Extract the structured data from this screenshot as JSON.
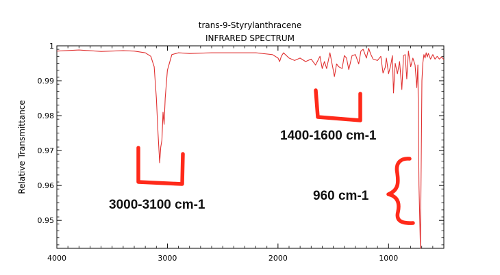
{
  "chart_data": {
    "type": "line",
    "title": "trans-9-Styrylanthracene",
    "subtitle": "INFRARED SPECTRUM",
    "ylabel": "Relative Transmittance",
    "xlabel": "",
    "xlim": [
      4000,
      500
    ],
    "ylim": [
      0.942,
      1.0
    ],
    "x_ticks": [
      4000,
      3000,
      2000,
      1000
    ],
    "y_ticks": [
      1,
      0.99,
      0.98,
      0.97,
      0.96,
      0.95
    ],
    "x_tick_labels": [
      "4000",
      "3000",
      "2000",
      "1000"
    ],
    "y_tick_labels": [
      "1",
      "0.99",
      "0.98",
      "0.97",
      "0.96",
      "0.95"
    ],
    "grid": false,
    "line_color": "#e03030",
    "series": [
      {
        "x": [
          4000,
          3800,
          3600,
          3400,
          3300,
          3200,
          3150,
          3120,
          3100,
          3085,
          3070,
          3060,
          3050,
          3040,
          3030,
          3020,
          3000,
          2960,
          2900,
          2800,
          2600,
          2400,
          2200,
          2050,
          2000,
          1985,
          1970,
          1950,
          1900,
          1850,
          1800,
          1750,
          1700,
          1660,
          1620,
          1600,
          1580,
          1560,
          1530,
          1500,
          1490,
          1470,
          1450,
          1420,
          1400,
          1380,
          1360,
          1330,
          1300,
          1270,
          1250,
          1230,
          1200,
          1180,
          1160,
          1140,
          1100,
          1070,
          1050,
          1030,
          1020,
          1000,
          980,
          965,
          955,
          940,
          920,
          900,
          880,
          865,
          850,
          835,
          820,
          800,
          780,
          760,
          745,
          735,
          725,
          712,
          705,
          698,
          690,
          680,
          670,
          660,
          650,
          640,
          620,
          600,
          580,
          560,
          540,
          520,
          500
        ],
        "y": [
          0.9985,
          0.9988,
          0.9984,
          0.9986,
          0.9985,
          0.998,
          0.997,
          0.994,
          0.985,
          0.975,
          0.9665,
          0.971,
          0.973,
          0.981,
          0.9775,
          0.985,
          0.993,
          0.9975,
          0.998,
          0.9978,
          0.998,
          0.998,
          0.998,
          0.9975,
          0.9965,
          0.9955,
          0.997,
          0.998,
          0.9965,
          0.9958,
          0.9965,
          0.9955,
          0.9962,
          0.9945,
          0.997,
          0.9935,
          0.9955,
          0.9935,
          0.998,
          0.993,
          0.9912,
          0.9948,
          0.994,
          0.9935,
          0.9972,
          0.9965,
          0.9932,
          0.9972,
          0.9975,
          0.9948,
          0.9985,
          0.999,
          0.9965,
          0.9993,
          0.9975,
          0.9962,
          0.9958,
          0.997,
          0.9922,
          0.9938,
          0.9965,
          0.992,
          0.9945,
          0.9972,
          0.9865,
          0.995,
          0.992,
          0.9955,
          0.9875,
          0.9972,
          0.9975,
          0.9905,
          0.9985,
          0.994,
          0.9965,
          0.9945,
          0.988,
          0.9945,
          0.96,
          0.9415,
          0.965,
          0.99,
          0.995,
          0.9975,
          0.9965,
          0.998,
          0.9968,
          0.9978,
          0.9962,
          0.9975,
          0.9962,
          0.997,
          0.9962,
          0.9968,
          0.996
        ]
      }
    ]
  },
  "annotations": [
    {
      "label": "3000-3100 cm-1"
    },
    {
      "label": "1400-1600 cm-1"
    },
    {
      "label": "960 cm-1"
    }
  ],
  "colors": {
    "marker": "#ff2a1a",
    "spectrum": "#e03030"
  }
}
